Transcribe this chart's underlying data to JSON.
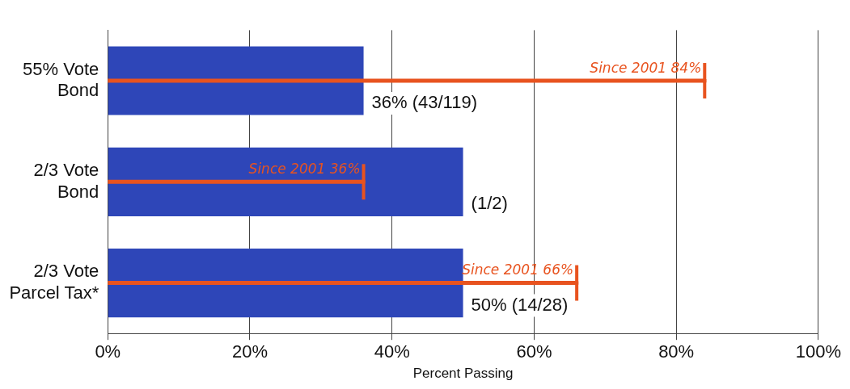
{
  "chart_data": {
    "type": "bar",
    "orientation": "horizontal",
    "xlabel": "Percent Passing",
    "categories": [
      "55% Vote Bond",
      "2/3 Vote Bond",
      "2/3 Vote Parcel Tax*"
    ],
    "series": [
      {
        "type": "bar",
        "color": "#2e46b8",
        "values": [
          36,
          50,
          50
        ],
        "value_labels": [
          "36% (43/119)",
          "(1/2)",
          "50% (14/28)"
        ]
      },
      {
        "type": "lollipop",
        "color": "#e8531f",
        "values": [
          84,
          36,
          66
        ],
        "value_labels": [
          "Since 2001 84%",
          "Since 2001 36%",
          "Since 2001 66%"
        ]
      }
    ],
    "xlim": [
      0,
      100
    ],
    "xticks": [
      {
        "value": 0,
        "label": "0%"
      },
      {
        "value": 20,
        "label": "20%"
      },
      {
        "value": 40,
        "label": "40%"
      },
      {
        "value": 60,
        "label": "60%"
      },
      {
        "value": 80,
        "label": "80%"
      },
      {
        "value": 100,
        "label": "100%"
      }
    ],
    "grid": "x",
    "legend": false
  }
}
